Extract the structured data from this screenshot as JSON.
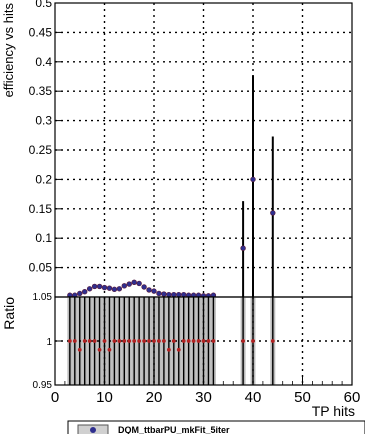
{
  "chart_data": {
    "type": "scatter",
    "xlabel": "TP hits",
    "ylabel_top": "efficiency vs hits",
    "ylabel_bottom": "Ratio",
    "xlim": [
      0,
      60
    ],
    "ylim_top": [
      0,
      0.5
    ],
    "ylim_bottom": [
      0.95,
      1.05
    ],
    "grid": true,
    "x_tick_labels": [
      "0",
      "10",
      "20",
      "30",
      "40",
      "50",
      "60"
    ],
    "x_ticks": [
      0,
      10,
      20,
      30,
      40,
      50,
      60
    ],
    "y_tick_labels_top": [
      "0.05",
      "0.1",
      "0.15",
      "0.2",
      "0.25",
      "0.3",
      "0.35",
      "0.4",
      "0.45",
      "0.5"
    ],
    "y_ticks_top": [
      0.05,
      0.1,
      0.15,
      0.2,
      0.25,
      0.3,
      0.35,
      0.4,
      0.45,
      0.5
    ],
    "y_tick_labels_bottom": [
      "0.95",
      "1",
      "1.05"
    ],
    "y_ticks_bottom": [
      0.95,
      1.0,
      1.05
    ],
    "series": [
      {
        "name": "DQM_ttbarPU_mkFit_5iter",
        "color": "#2f2f8f",
        "x": [
          3,
          4,
          5,
          6,
          7,
          8,
          9,
          10,
          11,
          12,
          13,
          14,
          15,
          16,
          17,
          18,
          19,
          20,
          21,
          22,
          23,
          24,
          25,
          26,
          27,
          28,
          29,
          30,
          31,
          32,
          38,
          40,
          44
        ],
        "y": [
          0.003,
          0.003,
          0.006,
          0.009,
          0.014,
          0.018,
          0.018,
          0.016,
          0.015,
          0.013,
          0.014,
          0.019,
          0.022,
          0.025,
          0.023,
          0.017,
          0.012,
          0.01,
          0.006,
          0.005,
          0.004,
          0.004,
          0.004,
          0.004,
          0.003,
          0.003,
          0.003,
          0.002,
          0.002,
          0.003,
          0.083,
          0.2,
          0.143
        ],
        "err_low": [
          0,
          0,
          0.002,
          0.002,
          0.003,
          0.003,
          0.003,
          0.003,
          0.003,
          0.003,
          0.003,
          0.003,
          0.003,
          0.004,
          0.004,
          0.003,
          0.003,
          0.003,
          0.002,
          0.002,
          0.002,
          0.002,
          0.002,
          0.002,
          0.002,
          0.002,
          0.002,
          0.002,
          0.002,
          0.002,
          0.083,
          0.2,
          0.143
        ],
        "err_high": [
          0.003,
          0.003,
          0.003,
          0.003,
          0.003,
          0.003,
          0.003,
          0.003,
          0.003,
          0.003,
          0.003,
          0.003,
          0.003,
          0.004,
          0.004,
          0.003,
          0.003,
          0.003,
          0.003,
          0.003,
          0.003,
          0.003,
          0.003,
          0.003,
          0.003,
          0.003,
          0.003,
          0.003,
          0.003,
          0.003,
          0.08,
          0.177,
          0.13
        ]
      }
    ],
    "ratio": {
      "x": [
        3,
        4,
        5,
        6,
        7,
        8,
        9,
        10,
        11,
        12,
        13,
        14,
        15,
        16,
        17,
        18,
        19,
        20,
        21,
        22,
        23,
        24,
        25,
        26,
        27,
        28,
        29,
        30,
        31,
        32,
        38,
        40,
        44
      ],
      "y": [
        1,
        1,
        0.99,
        1,
        1,
        1,
        0.99,
        1,
        0.99,
        1,
        1,
        1,
        1,
        1,
        1,
        1,
        1,
        1,
        1,
        1,
        0.99,
        1,
        0.99,
        1,
        1,
        1,
        1,
        1,
        1,
        1,
        1,
        1,
        1
      ]
    },
    "legend_entries": [
      "DQM_ttbarPU_mkFit_5iter"
    ]
  }
}
